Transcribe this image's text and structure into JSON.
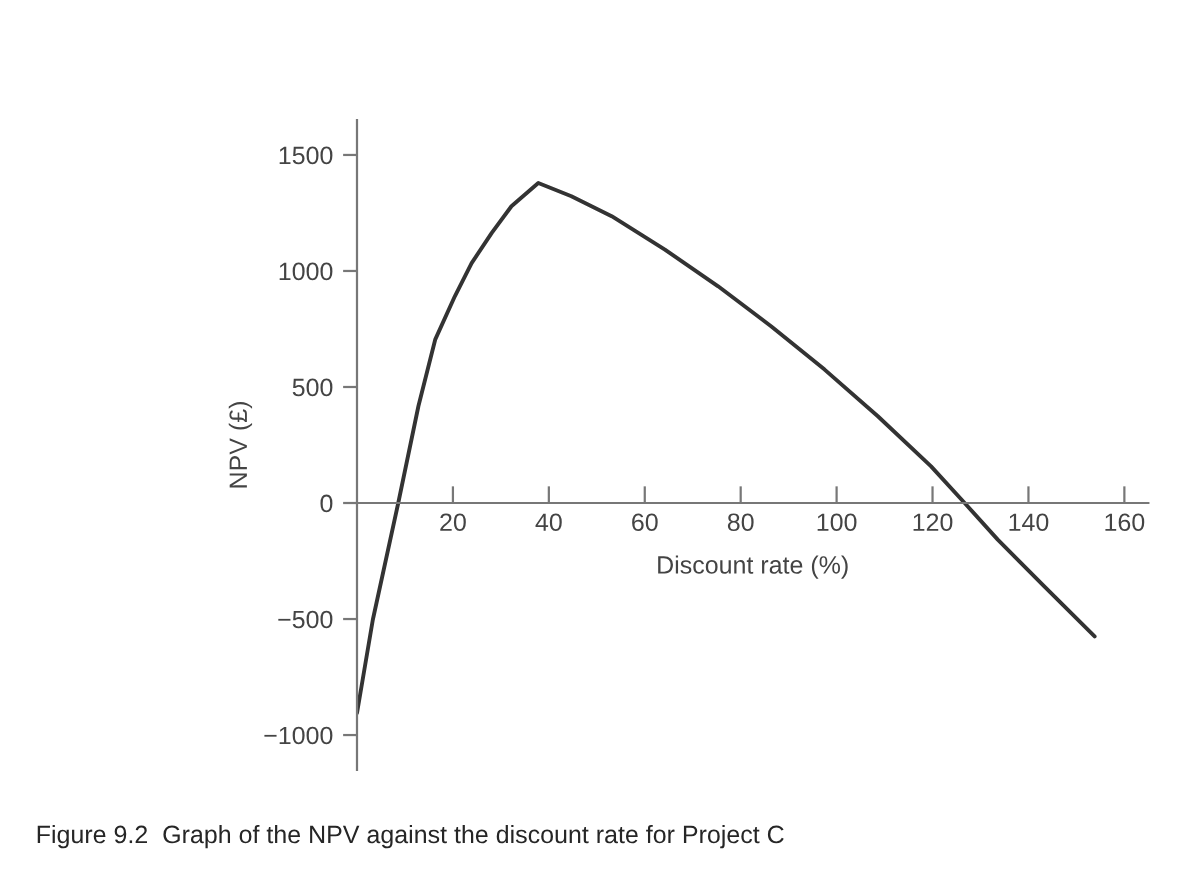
{
  "chart_data": {
    "type": "line",
    "xlabel": "Discount rate (%)",
    "ylabel": "NPV (£)",
    "x": [
      0,
      3.3,
      8.6,
      12.8,
      16.3,
      20.4,
      23.9,
      28.1,
      32.2,
      37.8,
      44.7,
      53.1,
      64.2,
      75.3,
      86.4,
      97.5,
      108.6,
      119.7,
      126.7,
      133.6,
      143.3,
      153.8
    ],
    "series": [
      {
        "color": "#333333",
        "values": [
          -905,
          -503,
          0,
          417,
          704,
          891,
          1034,
          1164,
          1279,
          1379,
          1322,
          1236,
          1092,
          934,
          761,
          575,
          374,
          158,
          0,
          -158,
          -359,
          -575
        ]
      }
    ],
    "xlim": [
      0,
      165
    ],
    "xticks": [
      20,
      40,
      60,
      80,
      100,
      120,
      140,
      160
    ],
    "ylim": [
      -1150,
      1650
    ],
    "yticks": [
      -1000,
      -500,
      0,
      500,
      1000,
      1500
    ],
    "grid": false,
    "marker": "none",
    "line_style": "solid",
    "annotations": [
      "Figure 9.2  Graph of the NPV against the discount rate for Project C"
    ]
  }
}
